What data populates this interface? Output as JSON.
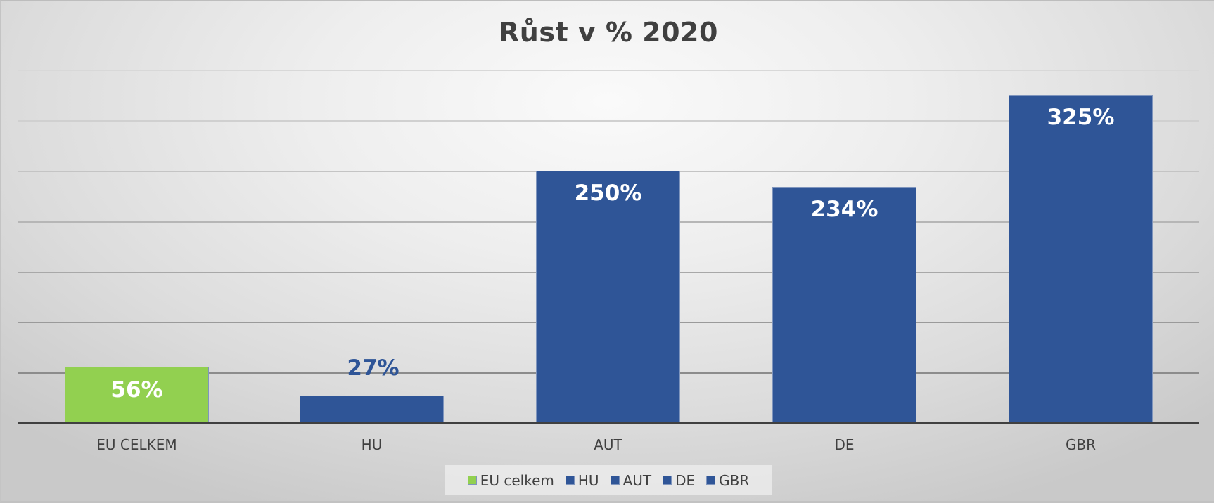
{
  "chart_data": {
    "type": "bar",
    "title": "Růst v % 2020",
    "categories": [
      "EU CELKEM",
      "HU",
      "AUT",
      "DE",
      "GBR"
    ],
    "values": [
      56,
      27,
      250,
      234,
      325
    ],
    "value_labels": [
      "56%",
      "27%",
      "250%",
      "234%",
      "325%"
    ],
    "series": [
      {
        "name": "EU celkem",
        "values": [
          56,
          null,
          null,
          null,
          null
        ],
        "color": "#92d050"
      },
      {
        "name": "HU",
        "values": [
          null,
          27,
          null,
          null,
          null
        ],
        "color": "#2f5597"
      },
      {
        "name": "AUT",
        "values": [
          null,
          null,
          250,
          null,
          null
        ],
        "color": "#2f5597"
      },
      {
        "name": "DE",
        "values": [
          null,
          null,
          null,
          234,
          null
        ],
        "color": "#2f5597"
      },
      {
        "name": "GBR",
        "values": [
          null,
          null,
          null,
          null,
          325
        ],
        "color": "#2f5597"
      }
    ],
    "xlabel": "",
    "ylabel": "",
    "ylim": [
      0,
      350
    ],
    "y_gridline_step": 50,
    "y_tick_labels_visible": false,
    "grid": true,
    "legend_position": "bottom",
    "unit": "%"
  },
  "colors": {
    "eu": "#92d050",
    "country": "#2f5597",
    "title": "#404040",
    "axis": "#404040"
  },
  "legend": [
    {
      "label": "EU celkem",
      "color": "#92d050"
    },
    {
      "label": "HU",
      "color": "#2f5597"
    },
    {
      "label": "AUT",
      "color": "#2f5597"
    },
    {
      "label": "DE",
      "color": "#2f5597"
    },
    {
      "label": "GBR",
      "color": "#2f5597"
    }
  ]
}
